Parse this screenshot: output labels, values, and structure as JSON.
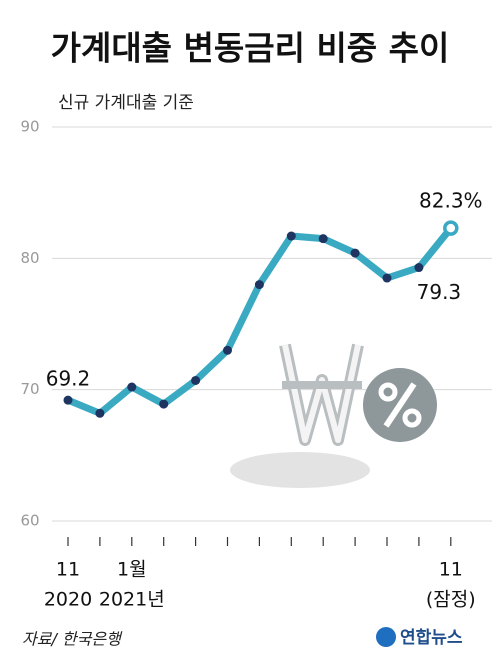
{
  "chart_data": {
    "type": "line",
    "title": "가계대출 변동금리 비중 추이",
    "subtitle": "신규 가계대출 기준",
    "categories": [
      "11",
      null,
      "1월",
      null,
      null,
      null,
      null,
      null,
      null,
      null,
      null,
      null,
      "11"
    ],
    "sublabels": [
      "2020",
      null,
      "2021년",
      null,
      null,
      null,
      null,
      null,
      null,
      null,
      null,
      null,
      "(잠정)"
    ],
    "values": [
      69.2,
      68.2,
      70.2,
      68.9,
      70.7,
      73.0,
      78.0,
      81.7,
      81.5,
      80.4,
      78.5,
      79.3,
      82.3
    ],
    "value_labels": [
      "69.2",
      null,
      null,
      null,
      null,
      null,
      null,
      null,
      null,
      null,
      null,
      "79.3",
      "82.3%"
    ],
    "color": "#3aa9c2",
    "marker_color": "#1d3560",
    "ylim": [
      60,
      90
    ],
    "yticks": [
      60,
      70,
      80,
      90
    ],
    "grid": true,
    "source": "자료/ 한국은행",
    "logo": "연합뉴스"
  }
}
